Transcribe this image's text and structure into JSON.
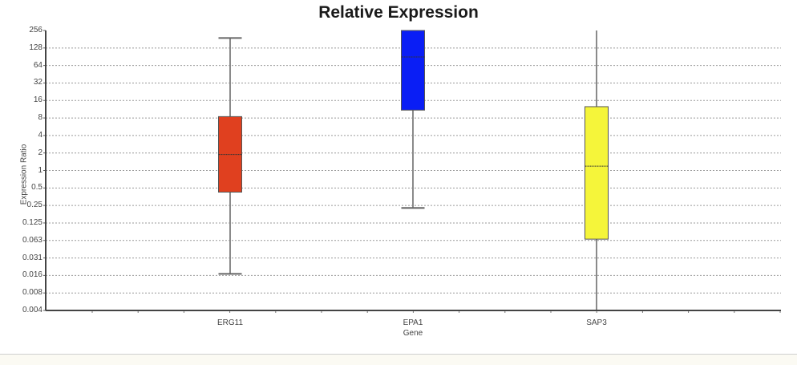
{
  "chart_data": {
    "type": "box",
    "title": "Relative Expression",
    "xlabel": "Gene",
    "ylabel": "Expression Ratio",
    "yscale": "log2",
    "ylim": [
      0.004,
      256
    ],
    "yticks": [
      "256",
      "128",
      "64",
      "32",
      "16",
      "8",
      "4",
      "2",
      "1",
      "0.5",
      "0.25",
      "0.125",
      "0.063",
      "0.031",
      "0.016",
      "0.008",
      "0.004"
    ],
    "grid": "horizontal dotted",
    "categories": [
      "ERG11",
      "EPA1",
      "SAP3"
    ],
    "series": [
      {
        "name": "ERG11",
        "color": "#E0401F",
        "whisker_high": 190,
        "q3": 8.5,
        "median": 1.9,
        "q1": 0.43,
        "whisker_low": 0.017
      },
      {
        "name": "EPA1",
        "color": "#0A1EF5",
        "whisker_high": 256,
        "q3": 256,
        "median": 90,
        "q1": 11,
        "whisker_low": 0.23
      },
      {
        "name": "SAP3",
        "color": "#F5F53A",
        "whisker_high": 256,
        "q3": 12.6,
        "median": 1.2,
        "q1": 0.067,
        "whisker_low": 0.004
      }
    ]
  }
}
